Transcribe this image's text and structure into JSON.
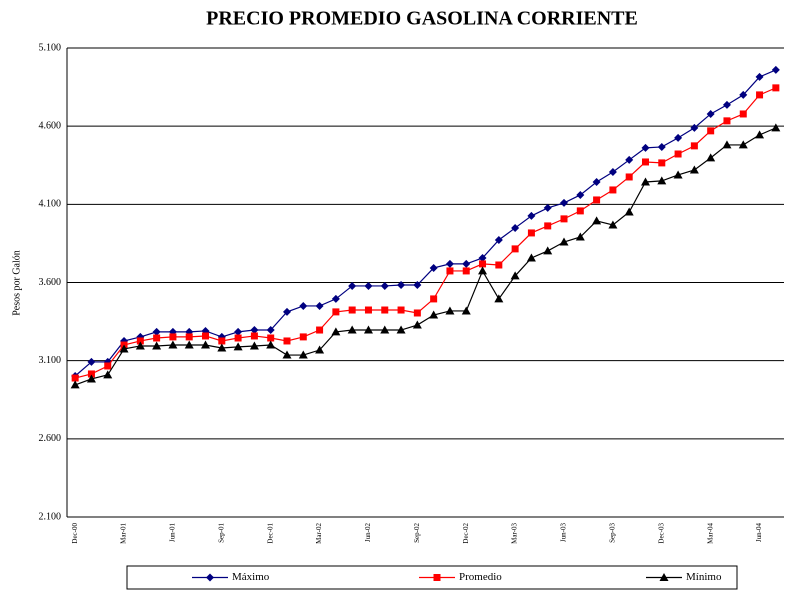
{
  "chart_data": {
    "type": "line",
    "title": "PRECIO PROMEDIO GASOLINA CORRIENTE",
    "y_label": "Pesos por Galón",
    "categories": [
      "Dec-00",
      null,
      null,
      "Mar-01",
      null,
      null,
      "Jun-01",
      null,
      null,
      "Sep-01",
      null,
      null,
      "Dec-01",
      null,
      null,
      "Mar-02",
      null,
      null,
      "Jun-02",
      null,
      null,
      "Sep-02",
      null,
      null,
      "Dec-02",
      null,
      null,
      "Mar-03",
      null,
      null,
      "Jun-03",
      null,
      null,
      "Sep-03",
      null,
      null,
      "Dec-03",
      null,
      null,
      "Mar-04",
      null,
      null,
      "Jun-04",
      null
    ],
    "series": [
      {
        "name": "Máximo",
        "color": "#000080",
        "marker": "diamond",
        "values": [
          3002,
          3092,
          3092,
          3226,
          3252,
          3284,
          3284,
          3284,
          3290,
          3252,
          3284,
          3296,
          3296,
          3412,
          3450,
          3450,
          3495,
          3578,
          3578,
          3578,
          3584,
          3584,
          3693,
          3719,
          3719,
          3757,
          3872,
          3949,
          4026,
          4077,
          4109,
          4160,
          4243,
          4307,
          4384,
          4461,
          4467,
          4525,
          4589,
          4678,
          4736,
          4800,
          4915,
          4960
        ]
      },
      {
        "name": "Promedio",
        "color": "#ff0000",
        "marker": "square",
        "values": [
          2989,
          3015,
          3066,
          3200,
          3226,
          3245,
          3252,
          3252,
          3258,
          3226,
          3245,
          3258,
          3245,
          3226,
          3252,
          3296,
          3412,
          3424,
          3424,
          3424,
          3424,
          3405,
          3495,
          3674,
          3674,
          3719,
          3712,
          3815,
          3917,
          3962,
          4007,
          4058,
          4128,
          4192,
          4275,
          4371,
          4365,
          4422,
          4474,
          4570,
          4634,
          4678,
          4800,
          4845
        ]
      },
      {
        "name": "Mínimo",
        "color": "#000000",
        "marker": "triangle",
        "values": [
          2945,
          2983,
          3009,
          3175,
          3194,
          3194,
          3200,
          3200,
          3200,
          3181,
          3188,
          3194,
          3200,
          3136,
          3136,
          3168,
          3284,
          3296,
          3296,
          3296,
          3296,
          3328,
          3392,
          3418,
          3418,
          3674,
          3495,
          3642,
          3757,
          3802,
          3859,
          3891,
          3994,
          3968,
          4051,
          4243,
          4250,
          4288,
          4320,
          4397,
          4480,
          4480,
          4544,
          4589
        ]
      }
    ],
    "ylim": [
      2100,
      5100
    ],
    "yticks": [
      {
        "value": 2100,
        "label": "2.100"
      },
      {
        "value": 2600,
        "label": "2.600"
      },
      {
        "value": 3100,
        "label": "3.100"
      },
      {
        "value": 3600,
        "label": "3.600"
      },
      {
        "value": 4100,
        "label": "4.100"
      },
      {
        "value": 4600,
        "label": "4.600"
      },
      {
        "value": 5100,
        "label": "5.100"
      }
    ],
    "grid": true,
    "legend": "bottom"
  }
}
